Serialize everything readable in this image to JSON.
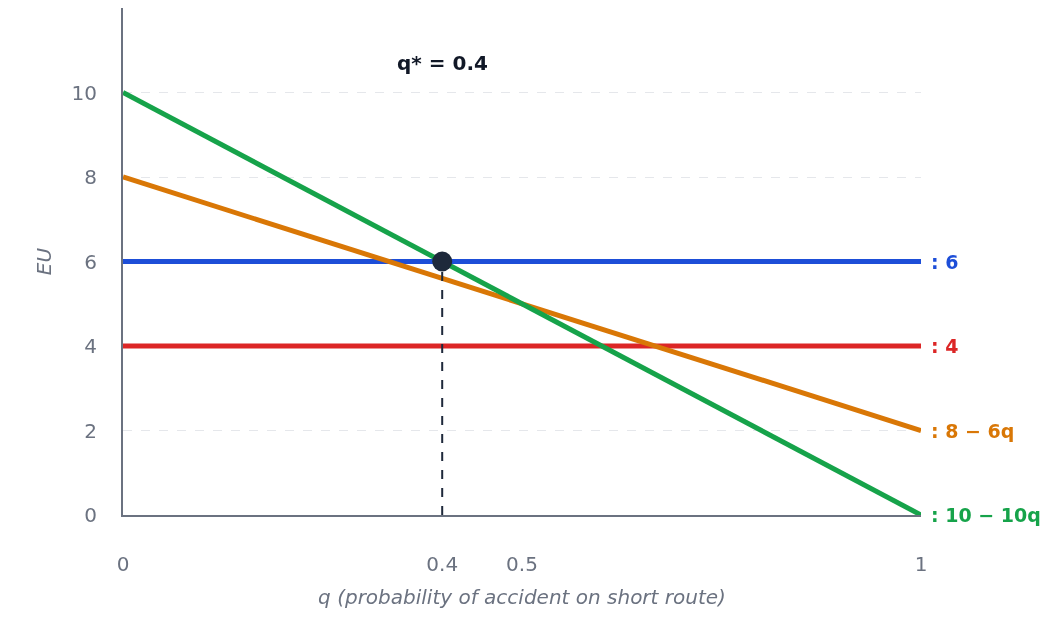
{
  "chart_data": {
    "type": "line",
    "xlabel": "q (probability of accident on short route)",
    "ylabel": "EU",
    "xlim": [
      0,
      1
    ],
    "xticks": [
      0,
      0.4,
      0.5,
      1
    ],
    "ylim": [
      0,
      12
    ],
    "yticks": [
      0,
      2,
      4,
      6,
      8,
      10
    ],
    "grid": "y",
    "legend": false,
    "annotations": [
      "q* = 0.4"
    ],
    "series": [
      {
        "name": ": 6",
        "color": "#1d4ed8",
        "x": [
          0,
          1
        ],
        "values": [
          6,
          6
        ]
      },
      {
        "name": ": 4",
        "color": "#dc2626",
        "x": [
          0,
          1
        ],
        "values": [
          4,
          4
        ]
      },
      {
        "name": ": 8 − 6q",
        "color": "#d97706",
        "x": [
          0,
          1
        ],
        "values": [
          8,
          2
        ]
      },
      {
        "name": ": 10 − 10q",
        "color": "#16a34a",
        "x": [
          0,
          1
        ],
        "values": [
          10,
          0
        ]
      },
      {
        "type": "line",
        "line_style": "dashed",
        "color": "#1e293b",
        "x": [
          0.4,
          0.4
        ],
        "values": [
          0,
          6
        ]
      },
      {
        "type": "scatter",
        "marker": "circle",
        "color": "#1e293b",
        "x": [
          0.4
        ],
        "values": [
          6
        ]
      }
    ]
  }
}
